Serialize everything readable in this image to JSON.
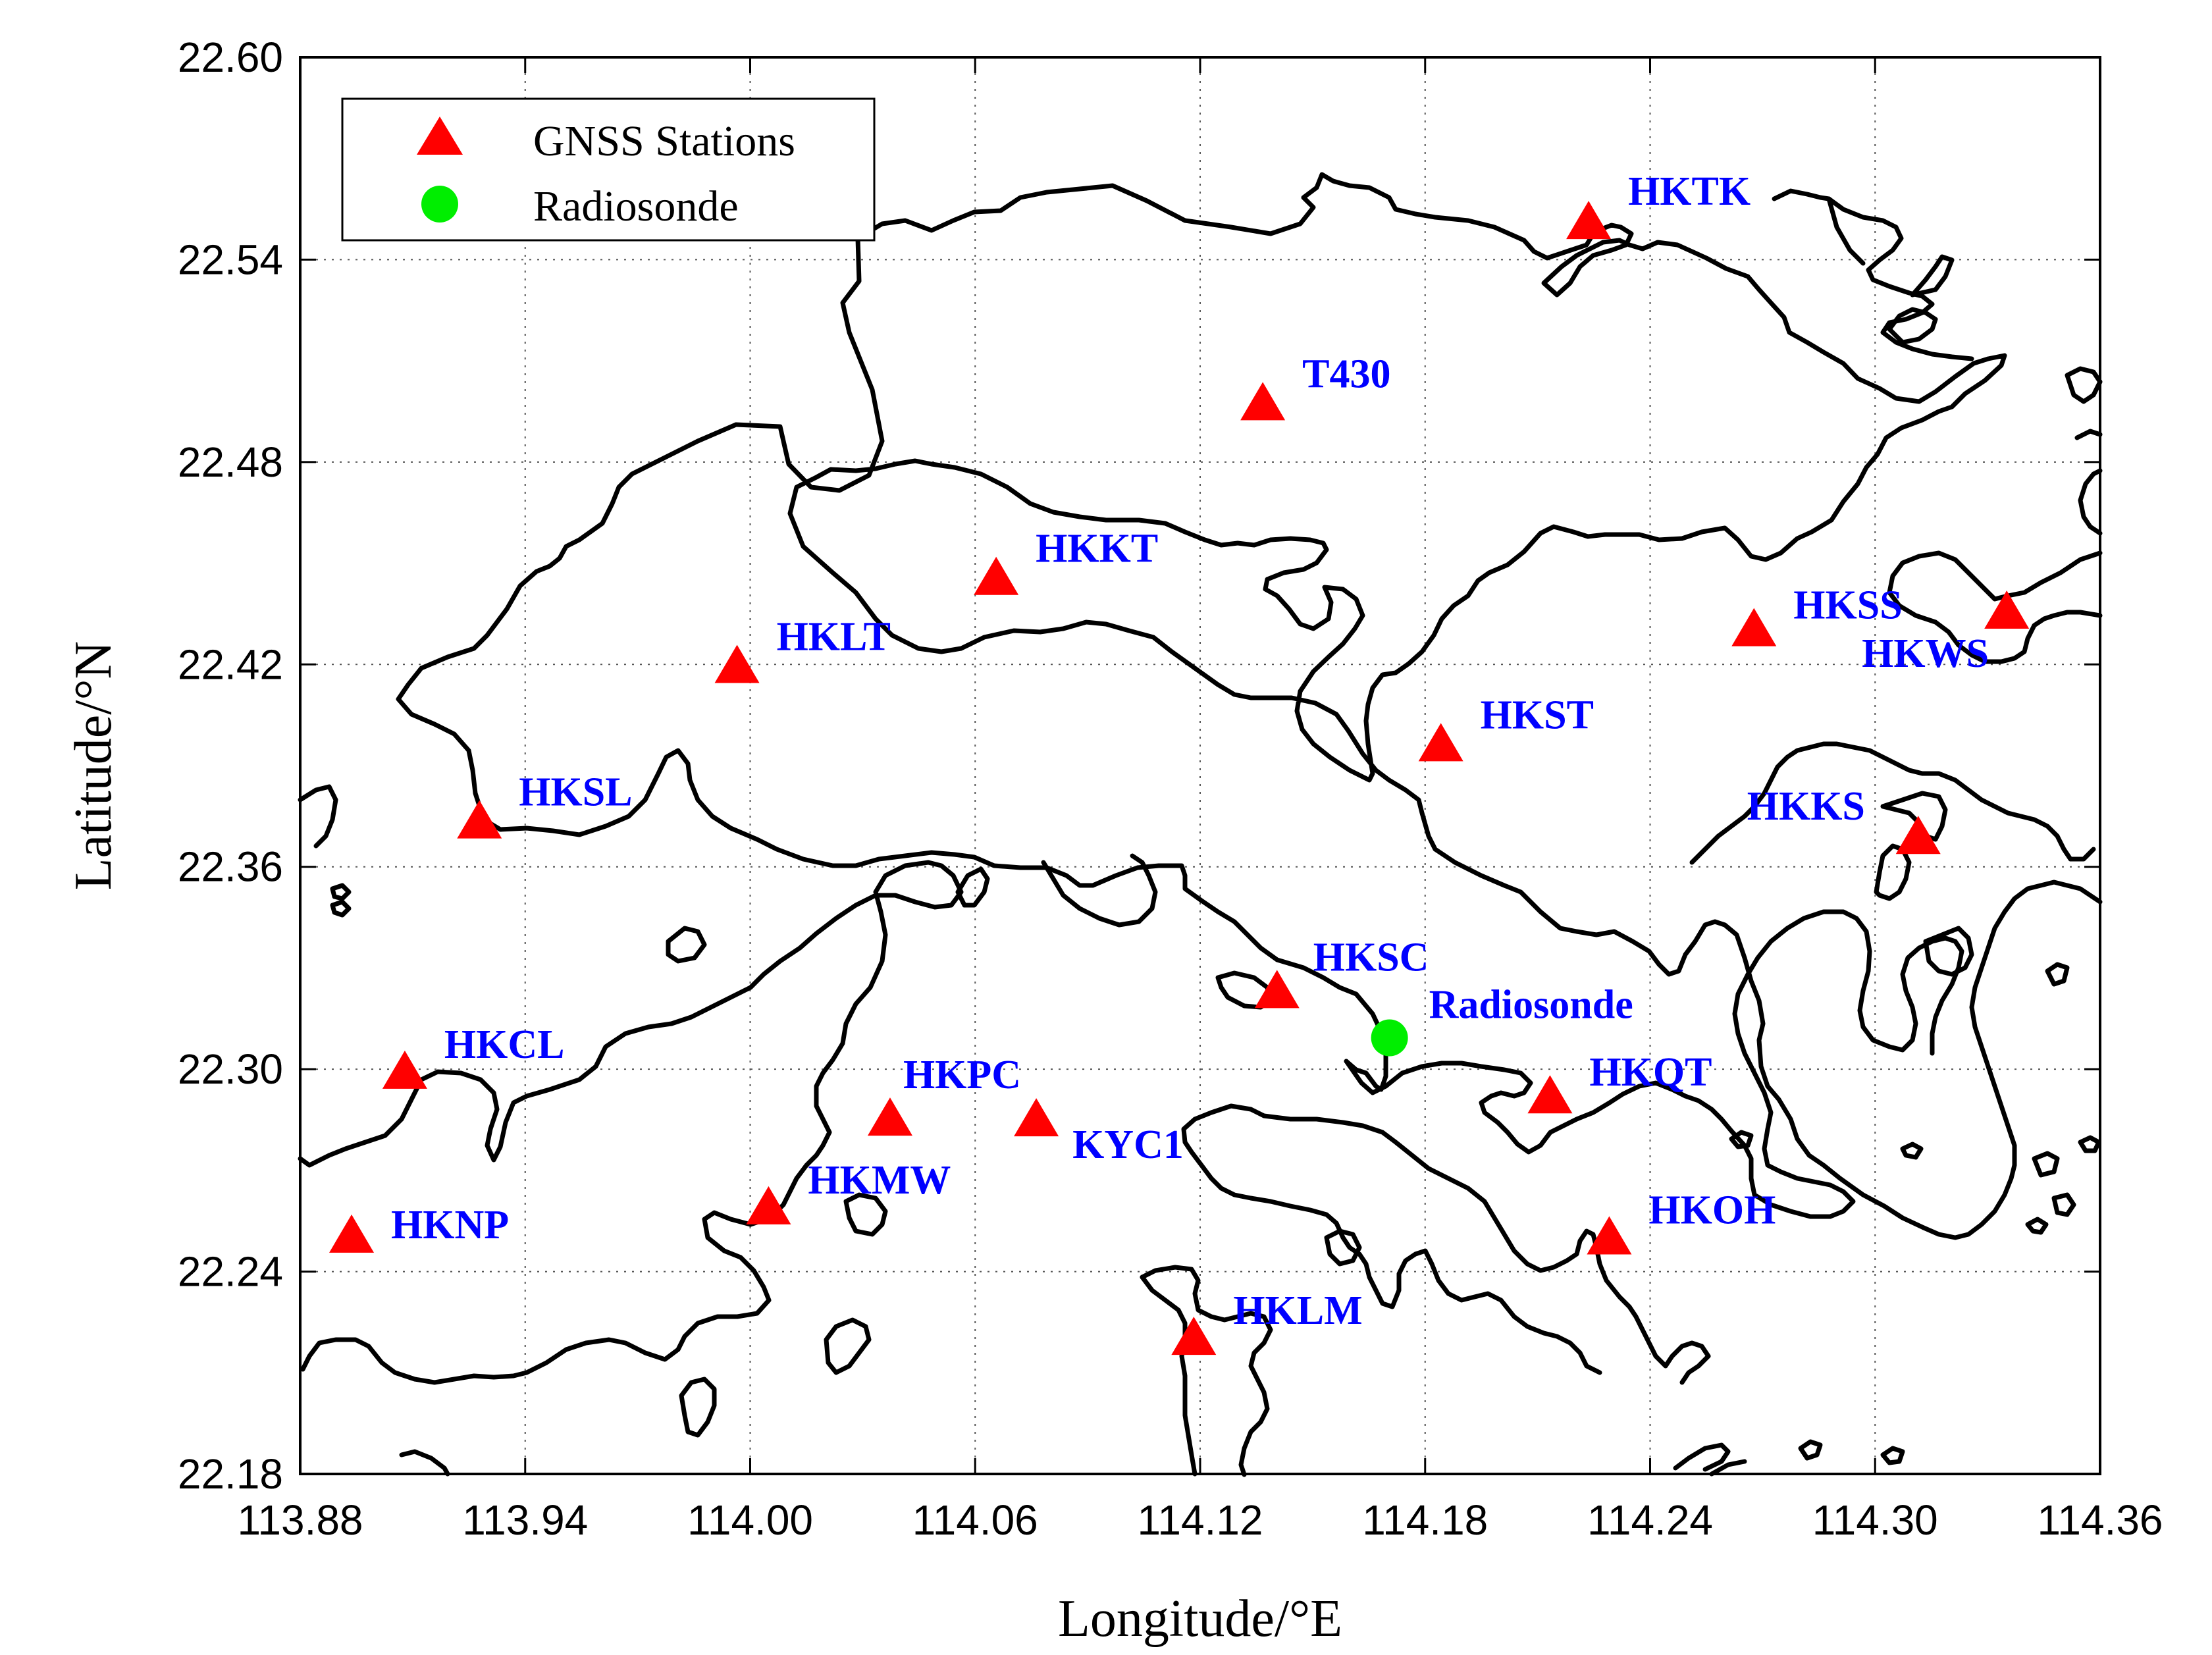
{
  "chart_data": {
    "type": "scatter",
    "xlabel": "Longitude/°E",
    "ylabel": "Latitude/°N",
    "xlim": [
      113.88,
      114.36
    ],
    "ylim": [
      22.18,
      22.6
    ],
    "xticks": [
      "113.88",
      "113.94",
      "114.00",
      "114.06",
      "114.12",
      "114.18",
      "114.24",
      "114.30",
      "114.36"
    ],
    "yticks": [
      "22.18",
      "22.24",
      "22.30",
      "22.36",
      "22.42",
      "22.48",
      "22.54",
      "22.60"
    ],
    "grid": true,
    "legend": {
      "placement": "top-left",
      "entries": [
        {
          "name": "GNSS Stations",
          "marker": "triangle",
          "color": "#ff0000"
        },
        {
          "name": "Radiosonde",
          "marker": "circle",
          "color": "#00ee00"
        }
      ]
    },
    "label_color": "#0000ff",
    "series": [
      {
        "name": "GNSS Stations",
        "marker": "triangle",
        "color": "#ff0000",
        "points": [
          {
            "label": "HKTK",
            "x": 114.2236,
            "y": 22.5504
          },
          {
            "label": "T430",
            "x": 114.1367,
            "y": 22.4967
          },
          {
            "label": "HKKT",
            "x": 114.0656,
            "y": 22.4449
          },
          {
            "label": "HKLT",
            "x": 113.9965,
            "y": 22.4188
          },
          {
            "label": "HKSS",
            "x": 114.2677,
            "y": 22.4297
          },
          {
            "label": "HKWS",
            "x": 114.3351,
            "y": 22.4349
          },
          {
            "label": "HKST",
            "x": 114.1842,
            "y": 22.3956
          },
          {
            "label": "HKSL",
            "x": 113.9278,
            "y": 22.3727
          },
          {
            "label": "HKKS",
            "x": 114.3115,
            "y": 22.3681
          },
          {
            "label": "HKSC",
            "x": 114.1405,
            "y": 22.3224
          },
          {
            "label": "HKCL",
            "x": 113.9079,
            "y": 22.2985
          },
          {
            "label": "HKQT",
            "x": 114.2133,
            "y": 22.2912
          },
          {
            "label": "HKPC",
            "x": 114.0373,
            "y": 22.2846
          },
          {
            "label": "KYC1",
            "x": 114.0763,
            "y": 22.2844
          },
          {
            "label": "HKMW",
            "x": 114.0049,
            "y": 22.2583
          },
          {
            "label": "HKNP",
            "x": 113.8937,
            "y": 22.2499
          },
          {
            "label": "HKOH",
            "x": 114.2291,
            "y": 22.2494
          },
          {
            "label": "HKLM",
            "x": 114.1183,
            "y": 22.2196
          }
        ]
      },
      {
        "name": "Radiosonde",
        "marker": "circle",
        "color": "#00ee00",
        "points": [
          {
            "label": "Radiosonde",
            "x": 114.1705,
            "y": 22.3093
          }
        ]
      }
    ]
  }
}
